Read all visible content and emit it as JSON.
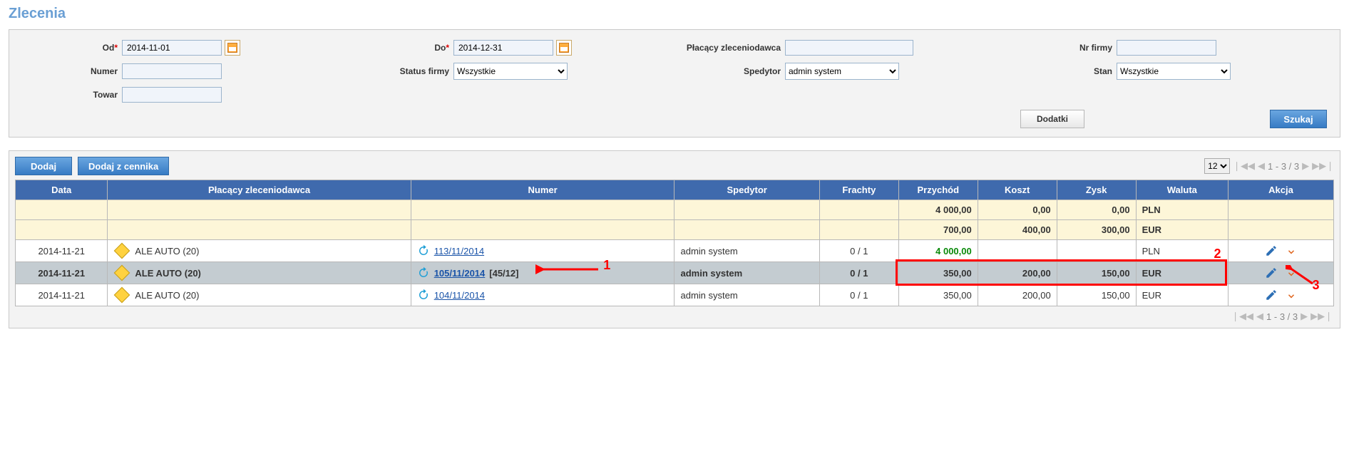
{
  "title": "Zlecenia",
  "filters": {
    "od": {
      "label": "Od",
      "required": true,
      "value": "2014-11-01"
    },
    "do": {
      "label": "Do",
      "required": true,
      "value": "2014-12-31"
    },
    "placacy": {
      "label": "Płacący zleceniodawca",
      "value": ""
    },
    "nrfirmy": {
      "label": "Nr firmy",
      "value": ""
    },
    "numer": {
      "label": "Numer",
      "value": ""
    },
    "statusfirmy": {
      "label": "Status firmy",
      "value": "Wszystkie"
    },
    "spedytor": {
      "label": "Spedytor",
      "value": "admin system"
    },
    "stan": {
      "label": "Stan",
      "value": "Wszystkie"
    },
    "towar": {
      "label": "Towar",
      "value": ""
    }
  },
  "buttons": {
    "dodatki": "Dodatki",
    "szukaj": "Szukaj",
    "dodaj": "Dodaj",
    "dodaj_cennika": "Dodaj z cennika"
  },
  "pager": {
    "page_size": "12",
    "range": "1 - 3 / 3"
  },
  "columns": {
    "data": "Data",
    "placacy": "Płacący zleceniodawca",
    "numer": "Numer",
    "spedytor": "Spedytor",
    "frachty": "Frachty",
    "przychod": "Przychód",
    "koszt": "Koszt",
    "zysk": "Zysk",
    "waluta": "Waluta",
    "akcja": "Akcja"
  },
  "summary": [
    {
      "przychod": "4 000,00",
      "koszt": "0,00",
      "zysk": "0,00",
      "waluta": "PLN"
    },
    {
      "przychod": "700,00",
      "koszt": "400,00",
      "zysk": "300,00",
      "waluta": "EUR"
    }
  ],
  "rows": [
    {
      "data": "2014-11-21",
      "zleceniodawca": "ALE AUTO (20)",
      "numer_link": "113/11/2014",
      "numer_extra": "",
      "spedytor": "admin system",
      "frachty": "0 / 1",
      "przychod": "4 000,00",
      "przychod_green": true,
      "koszt": "",
      "zysk": "",
      "waluta": "PLN",
      "selected": false
    },
    {
      "data": "2014-11-21",
      "zleceniodawca": "ALE AUTO (20)",
      "numer_link": "105/11/2014",
      "numer_extra": "[45/12]",
      "spedytor": "admin system",
      "frachty": "0 / 1",
      "przychod": "350,00",
      "przychod_green": false,
      "koszt": "200,00",
      "zysk": "150,00",
      "waluta": "EUR",
      "selected": true
    },
    {
      "data": "2014-11-21",
      "zleceniodawca": "ALE AUTO (20)",
      "numer_link": "104/11/2014",
      "numer_extra": "",
      "spedytor": "admin system",
      "frachty": "0 / 1",
      "przychod": "350,00",
      "przychod_green": false,
      "koszt": "200,00",
      "zysk": "150,00",
      "waluta": "EUR",
      "selected": false
    }
  ],
  "annotations": {
    "n1": "1",
    "n2": "2",
    "n3": "3"
  },
  "colwidths": {
    "data": "7%",
    "placacy": "23%",
    "numer": "20%",
    "spedytor": "11%",
    "frachty": "6%",
    "przychod": "6%",
    "koszt": "6%",
    "zysk": "6%",
    "waluta": "7%",
    "akcja": "8%"
  }
}
